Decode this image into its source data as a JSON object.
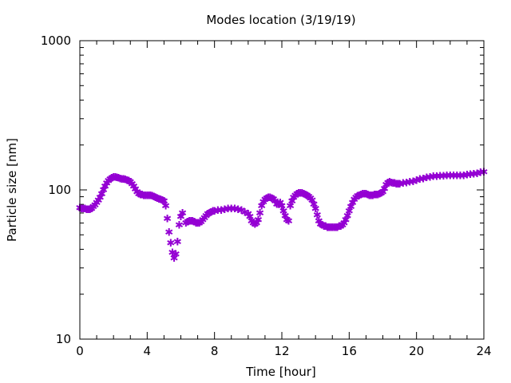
{
  "chart_data": {
    "type": "scatter",
    "title": "Modes location (3/19/19)",
    "xlabel": "Time [hour]",
    "ylabel": "Particle size [nm]",
    "xlim": [
      0,
      24
    ],
    "ylim": [
      10,
      1000
    ],
    "yscale": "log",
    "grid": false,
    "legend": "none",
    "x_ticks": [
      0,
      4,
      8,
      12,
      16,
      20,
      24
    ],
    "y_ticks": [
      10,
      100,
      1000
    ],
    "marker": "star",
    "color": "#9400d3",
    "x": [
      0.0,
      0.1,
      0.2,
      0.3,
      0.4,
      0.5,
      0.6,
      0.7,
      0.8,
      0.9,
      1.0,
      1.1,
      1.2,
      1.3,
      1.4,
      1.5,
      1.6,
      1.7,
      1.8,
      1.9,
      2.0,
      2.1,
      2.2,
      2.3,
      2.4,
      2.5,
      2.6,
      2.7,
      2.8,
      2.9,
      3.0,
      3.1,
      3.2,
      3.3,
      3.4,
      3.5,
      3.6,
      3.7,
      3.8,
      3.9,
      4.0,
      4.1,
      4.2,
      4.3,
      4.4,
      4.5,
      4.6,
      4.7,
      4.8,
      4.9,
      5.0,
      5.1,
      5.2,
      5.3,
      5.4,
      5.5,
      5.6,
      5.7,
      5.8,
      5.9,
      6.0,
      6.1,
      6.3,
      6.4,
      6.5,
      6.6,
      6.7,
      6.8,
      6.9,
      7.0,
      7.1,
      7.2,
      7.3,
      7.4,
      7.5,
      7.6,
      7.7,
      7.8,
      7.9,
      8.0,
      8.2,
      8.4,
      8.6,
      8.8,
      9.0,
      9.2,
      9.4,
      9.6,
      9.8,
      10.0,
      10.1,
      10.2,
      10.3,
      10.4,
      10.5,
      10.6,
      10.7,
      10.8,
      10.9,
      11.0,
      11.1,
      11.2,
      11.3,
      11.4,
      11.5,
      11.6,
      11.7,
      11.8,
      11.9,
      12.0,
      12.1,
      12.2,
      12.3,
      12.4,
      12.5,
      12.6,
      12.7,
      12.8,
      12.9,
      13.0,
      13.1,
      13.2,
      13.3,
      13.4,
      13.5,
      13.6,
      13.7,
      13.8,
      13.9,
      14.0,
      14.1,
      14.2,
      14.3,
      14.4,
      14.5,
      14.6,
      14.7,
      14.8,
      14.9,
      15.0,
      15.1,
      15.2,
      15.3,
      15.4,
      15.5,
      15.6,
      15.7,
      15.8,
      15.9,
      16.0,
      16.1,
      16.2,
      16.3,
      16.4,
      16.5,
      16.6,
      16.7,
      16.8,
      16.9,
      17.0,
      17.1,
      17.2,
      17.3,
      17.4,
      17.5,
      17.6,
      17.7,
      17.8,
      17.9,
      18.0,
      18.1,
      18.2,
      18.3,
      18.4,
      18.5,
      18.6,
      18.7,
      18.8,
      18.9,
      19.0,
      19.2,
      19.4,
      19.6,
      19.8,
      20.0,
      20.2,
      20.4,
      20.6,
      20.8,
      21.0,
      21.2,
      21.4,
      21.6,
      21.8,
      22.0,
      22.2,
      22.4,
      22.6,
      22.8,
      23.0,
      23.2,
      23.4,
      23.6,
      23.8,
      24.0
    ],
    "y": [
      76,
      75,
      75,
      75,
      74,
      74,
      74,
      75,
      77,
      79,
      82,
      85,
      89,
      94,
      100,
      106,
      111,
      115,
      118,
      120,
      122,
      122,
      121,
      120,
      119,
      118,
      118,
      117,
      116,
      115,
      113,
      110,
      106,
      101,
      97,
      94,
      93,
      93,
      92,
      92,
      92,
      92,
      92,
      91,
      90,
      89,
      88,
      87,
      86,
      85,
      84,
      78,
      64,
      52,
      44,
      38,
      35,
      37,
      45,
      58,
      66,
      70,
      60,
      61,
      62,
      62,
      62,
      61,
      60,
      60,
      60,
      61,
      63,
      65,
      67,
      69,
      70,
      71,
      72,
      72,
      73,
      73,
      74,
      75,
      75,
      75,
      74,
      73,
      71,
      69,
      66,
      62,
      60,
      59,
      60,
      63,
      70,
      78,
      83,
      86,
      88,
      89,
      89,
      88,
      87,
      84,
      80,
      80,
      82,
      78,
      72,
      67,
      63,
      62,
      78,
      84,
      89,
      92,
      94,
      95,
      95,
      95,
      94,
      93,
      92,
      90,
      88,
      85,
      80,
      75,
      68,
      62,
      59,
      58,
      57,
      57,
      56,
      56,
      56,
      56,
      56,
      56,
      56,
      57,
      57,
      58,
      60,
      63,
      67,
      72,
      77,
      82,
      86,
      89,
      91,
      92,
      93,
      94,
      94,
      94,
      93,
      92,
      92,
      92,
      93,
      93,
      93,
      94,
      95,
      97,
      102,
      108,
      112,
      113,
      112,
      111,
      111,
      110,
      110,
      110,
      111,
      112,
      113,
      114,
      116,
      118,
      119,
      121,
      122,
      123,
      123,
      124,
      124,
      125,
      125,
      125,
      125,
      125,
      125,
      126,
      127,
      128,
      129,
      131,
      132
    ]
  }
}
